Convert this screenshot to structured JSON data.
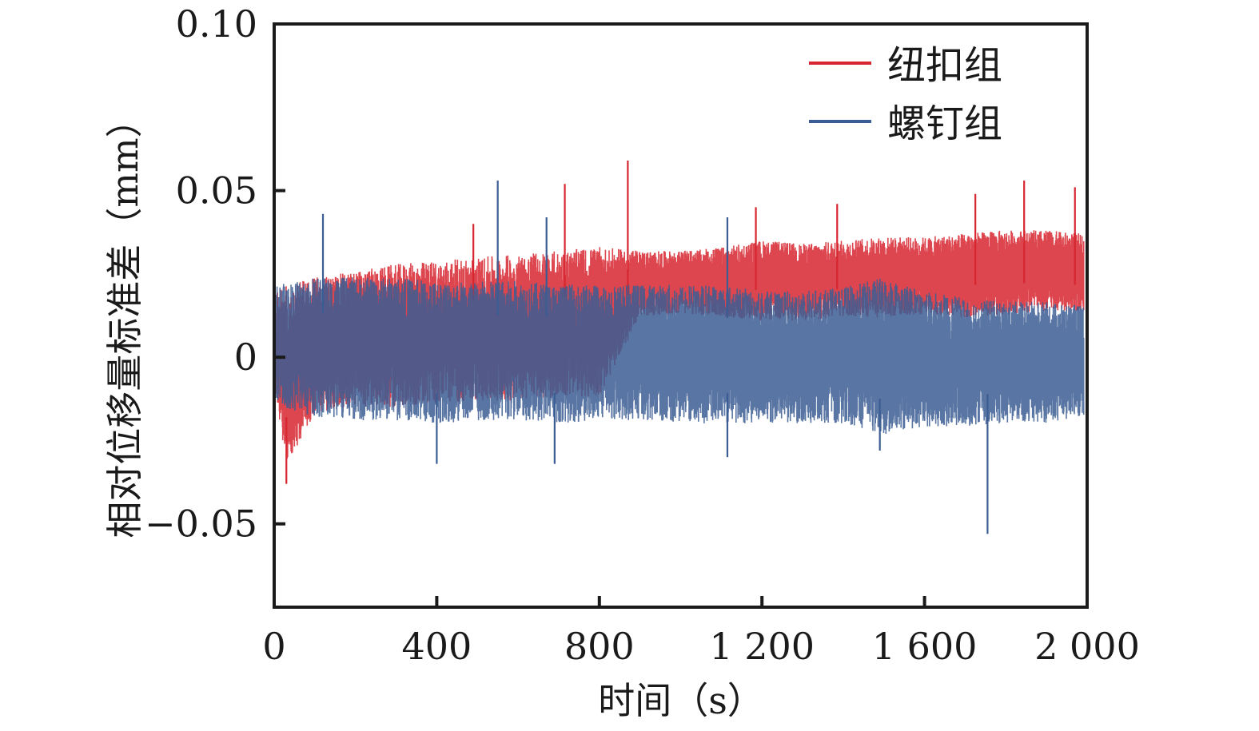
{
  "chart_data": {
    "type": "line",
    "title": "",
    "xlabel": "时间（s）",
    "ylabel": "相对位移量标准差（mm）",
    "xlim": [
      0,
      2000
    ],
    "ylim": [
      -0.075,
      0.1
    ],
    "x_ticks": [
      0,
      400,
      800,
      1200,
      1600,
      2000
    ],
    "x_tick_labels": [
      "0",
      "400",
      "800",
      "1 200",
      "1 600",
      "2 000"
    ],
    "y_ticks": [
      0.1,
      0.05,
      0,
      -0.05
    ],
    "y_tick_labels": [
      "0.10",
      "0.05",
      "0",
      "−0.05"
    ],
    "grid": false,
    "legend_position": "top-right",
    "series": [
      {
        "name": "纽扣组",
        "color": "#d7262f",
        "description_points": {
          "x": [
            5,
            30,
            100,
            200,
            300,
            400,
            500,
            600,
            700,
            800,
            900,
            1000,
            1100,
            1200,
            1300,
            1400,
            1500,
            1600,
            1700,
            1800,
            1900,
            1990
          ],
          "upper": [
            0.018,
            0.02,
            0.022,
            0.024,
            0.026,
            0.027,
            0.028,
            0.029,
            0.03,
            0.031,
            0.031,
            0.031,
            0.032,
            0.034,
            0.033,
            0.034,
            0.035,
            0.035,
            0.036,
            0.037,
            0.037,
            0.036
          ],
          "lower": [
            -0.012,
            -0.03,
            -0.015,
            -0.013,
            -0.013,
            -0.012,
            -0.011,
            -0.011,
            -0.01,
            -0.01,
            0.013,
            0.014,
            0.013,
            0.012,
            0.012,
            0.013,
            0.013,
            0.014,
            0.013,
            0.014,
            0.015,
            0.015
          ]
        },
        "peaks": [
          {
            "x": 30,
            "y": -0.038
          },
          {
            "x": 490,
            "y": 0.04
          },
          {
            "x": 715,
            "y": 0.052
          },
          {
            "x": 870,
            "y": 0.059
          },
          {
            "x": 1185,
            "y": 0.045
          },
          {
            "x": 1385,
            "y": 0.046
          },
          {
            "x": 1725,
            "y": 0.049
          },
          {
            "x": 1845,
            "y": 0.053
          },
          {
            "x": 1970,
            "y": 0.051
          }
        ]
      },
      {
        "name": "螺钉组",
        "color": "#3b5d93",
        "description_points": {
          "x": [
            5,
            100,
            200,
            300,
            400,
            500,
            600,
            700,
            800,
            900,
            1000,
            1100,
            1200,
            1300,
            1400,
            1500,
            1600,
            1700,
            1800,
            1900,
            1990
          ],
          "upper": [
            0.02,
            0.022,
            0.022,
            0.022,
            0.021,
            0.021,
            0.021,
            0.02,
            0.02,
            0.02,
            0.02,
            0.02,
            0.018,
            0.018,
            0.019,
            0.022,
            0.018,
            0.016,
            0.015,
            0.015,
            0.014
          ],
          "lower": [
            -0.013,
            -0.016,
            -0.017,
            -0.017,
            -0.018,
            -0.017,
            -0.017,
            -0.018,
            -0.017,
            -0.017,
            -0.018,
            -0.018,
            -0.018,
            -0.018,
            -0.018,
            -0.021,
            -0.019,
            -0.019,
            -0.018,
            -0.018,
            -0.016
          ]
        },
        "peaks": [
          {
            "x": 120,
            "y": 0.043
          },
          {
            "x": 550,
            "y": 0.053
          },
          {
            "x": 670,
            "y": 0.042
          },
          {
            "x": 1115,
            "y": 0.042
          },
          {
            "x": 400,
            "y": -0.032
          },
          {
            "x": 690,
            "y": -0.032
          },
          {
            "x": 1115,
            "y": -0.03
          },
          {
            "x": 1490,
            "y": -0.028
          },
          {
            "x": 1755,
            "y": -0.053
          }
        ]
      }
    ]
  }
}
